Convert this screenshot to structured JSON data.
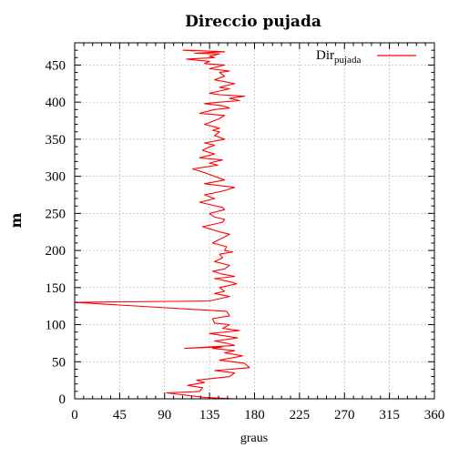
{
  "chart_data": {
    "type": "line",
    "title": "Direccio pujada",
    "xlabel": "graus",
    "ylabel": "m",
    "xlim": [
      0,
      360
    ],
    "ylim": [
      0,
      480
    ],
    "xticks": [
      0,
      45,
      90,
      135,
      180,
      225,
      270,
      315,
      360
    ],
    "yticks": [
      0,
      50,
      100,
      150,
      200,
      250,
      300,
      350,
      400,
      450
    ],
    "grid": true,
    "legend_position": "top-right",
    "series": [
      {
        "name_main": "Dir",
        "name_sub": "pujada",
        "color": "#ff0000",
        "x": [
          158,
          130,
          92,
          125,
          128,
          113,
          130,
          122,
          155,
          160,
          140,
          175,
          170,
          145,
          168,
          150,
          160,
          138,
          148,
          110,
          160,
          152,
          140,
          163,
          150,
          135,
          165,
          148,
          155,
          140,
          138,
          155,
          152,
          0,
          135,
          155,
          140,
          150,
          145,
          162,
          155,
          140,
          160,
          148,
          138,
          150,
          155,
          140,
          148,
          145,
          158,
          150,
          152,
          138,
          145,
          150,
          155,
          145,
          128,
          148,
          150,
          140,
          135,
          150,
          148,
          135,
          125,
          140,
          130,
          148,
          160,
          130,
          150,
          140,
          130,
          118,
          143,
          135,
          148,
          125,
          140,
          128,
          132,
          140,
          130,
          150,
          140,
          145,
          138,
          145,
          130,
          140,
          145,
          150,
          125,
          140,
          155,
          148,
          130,
          145,
          165,
          155,
          170,
          145,
          135,
          155,
          145,
          160,
          140,
          150,
          145,
          155,
          135,
          150,
          130,
          135,
          112,
          140,
          135,
          145,
          120,
          150,
          110,
          120,
          108
        ],
        "y": [
          0,
          2,
          8,
          10,
          15,
          18,
          22,
          25,
          30,
          35,
          38,
          42,
          48,
          52,
          58,
          62,
          65,
          68,
          70,
          68,
          72,
          75,
          78,
          82,
          85,
          88,
          92,
          95,
          100,
          102,
          108,
          112,
          118,
          130,
          132,
          138,
          142,
          145,
          150,
          155,
          158,
          162,
          165,
          168,
          172,
          175,
          180,
          185,
          190,
          195,
          198,
          200,
          205,
          210,
          215,
          218,
          222,
          225,
          232,
          238,
          242,
          245,
          250,
          255,
          258,
          262,
          265,
          270,
          275,
          280,
          285,
          290,
          295,
          300,
          305,
          310,
          315,
          318,
          322,
          325,
          330,
          335,
          338,
          342,
          345,
          350,
          355,
          360,
          362,
          365,
          370,
          375,
          378,
          382,
          385,
          390,
          392,
          395,
          398,
          400,
          402,
          405,
          408,
          410,
          412,
          418,
          420,
          425,
          430,
          435,
          440,
          442,
          445,
          450,
          452,
          455,
          458,
          460,
          462,
          465,
          466,
          468,
          470,
          469,
          470
        ]
      }
    ]
  }
}
